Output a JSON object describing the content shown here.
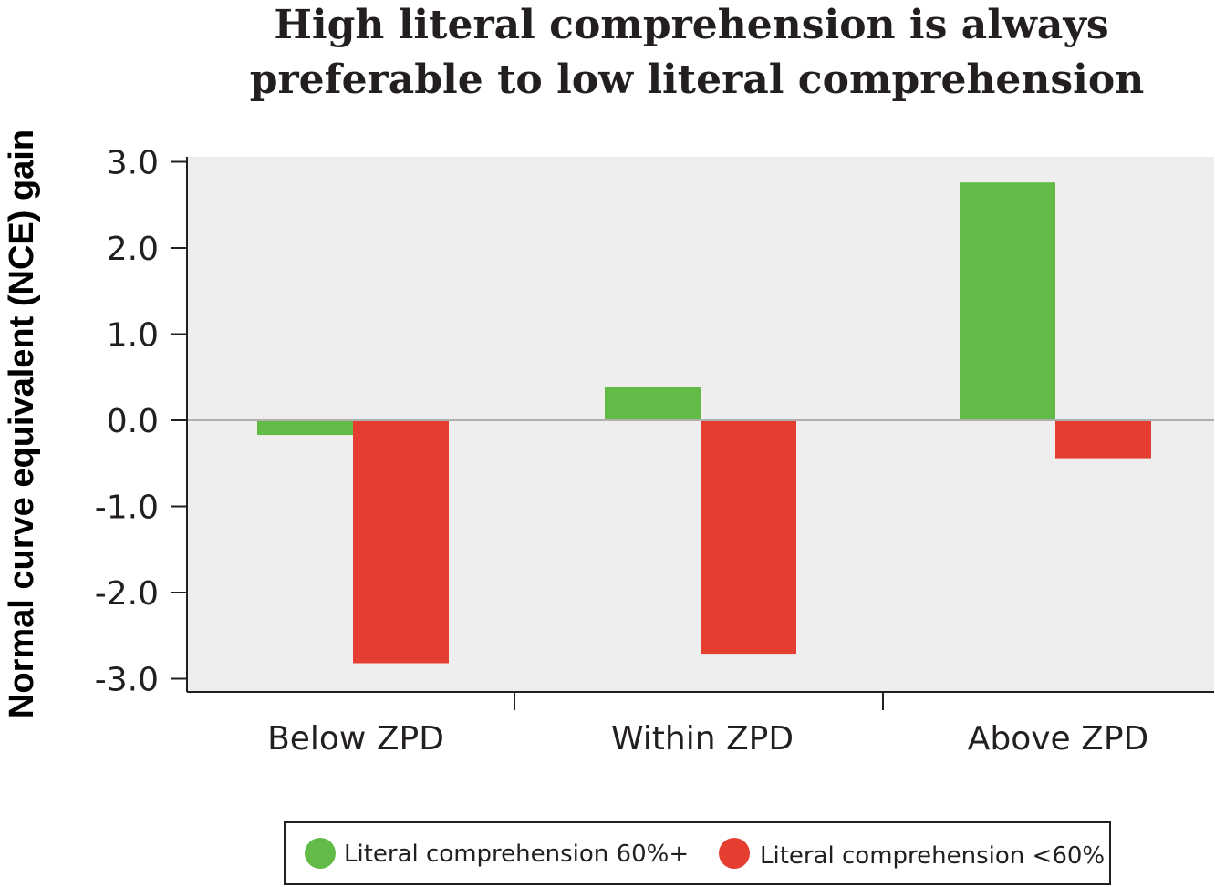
{
  "chart_data": {
    "type": "bar",
    "title": [
      "High literal comprehension is always",
      "preferable to low literal comprehension"
    ],
    "ylabel": "Normal curve equivalent (NCE) gain",
    "xlabel": "",
    "categories": [
      "Below ZPD",
      "Within ZPD",
      "Above ZPD"
    ],
    "series": [
      {
        "name": "Literal comprehension 60%+",
        "color": "#62bb46",
        "values": [
          -0.17,
          0.39,
          2.76
        ]
      },
      {
        "name": "Literal comprehension <60%",
        "color": "#e53d2f",
        "values": [
          -2.82,
          -2.71,
          -0.44
        ]
      }
    ],
    "yticks": [
      "3.0",
      "2.0",
      "1.0",
      "0.0",
      "-1.0",
      "-2.0",
      "-3.0"
    ],
    "ylim": [
      -3.1,
      3.0
    ],
    "grid": false,
    "legend": "bottom",
    "plot_background": "#edeeed"
  }
}
